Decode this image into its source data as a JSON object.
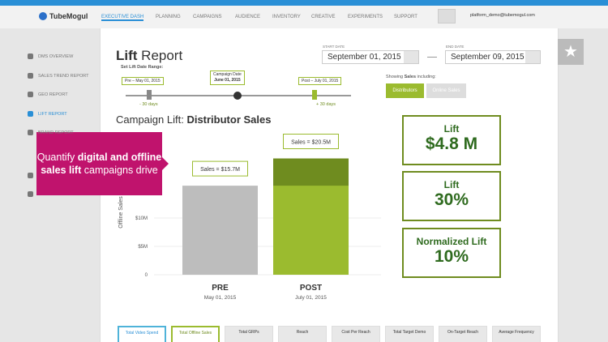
{
  "header": {
    "logo": "TubeMogul",
    "nav": [
      "EXECUTIVE DASH",
      "PLANNING",
      "CAMPAIGNS",
      "AUDIENCE",
      "INVENTORY",
      "CREATIVE",
      "EXPERIMENTS",
      "SUPPORT"
    ],
    "user": "platform_demo@tubemogul.com"
  },
  "sidebar": [
    "DMS OVERVIEW",
    "SALES TREND REPORT",
    "GEO REPORT",
    "LIFT REPORT",
    "BRAND REPORT"
  ],
  "report": {
    "title_bold": "Lift",
    "title_rest": " Report",
    "range_label": "Set Lift Date Range:",
    "slider": {
      "pre": "Pre – May 01, 2015",
      "campaign_label": "Campaign Date",
      "campaign_date": "June 01, 2015",
      "post": "Post – July 01, 2015",
      "minus": "- 30 days",
      "plus": "+ 30 days"
    },
    "start_label": "START DATE",
    "start": "September 01, 2015",
    "end_label": "END DATE",
    "end": "September 09, 2015",
    "showing_prefix": "Showing ",
    "showing_bold": "Sales",
    "showing_suffix": " including:",
    "buttons": [
      "Distributors",
      "Online Sales"
    ],
    "lift_prefix": "Campaign Lift: ",
    "lift_bold": "Distributor Sales"
  },
  "cards": [
    {
      "label": "Lift",
      "value": "$4.8 M"
    },
    {
      "label": "Lift",
      "value": "30%"
    },
    {
      "label": "Normalized Lift",
      "value": "10%"
    }
  ],
  "callout": [
    "Quantify ",
    "digital and offline",
    " sales lift",
    " campaigns drive"
  ],
  "totals": [
    "Total Video Spend",
    "Total Offline Sales",
    "Total GRPs",
    "Reach",
    "Cost Per Reach",
    "Total Target Demo",
    "On-Target Reach",
    "Average Frequency"
  ],
  "chart_data": {
    "type": "bar",
    "ylabel": "Offline Sales",
    "categories": [
      "PRE",
      "POST"
    ],
    "dates": [
      "May 01, 2015",
      "July 01, 2015"
    ],
    "values": [
      15.7,
      20.5
    ],
    "value_labels": [
      "Sales = $15.7M",
      "Sales = $20.5M"
    ],
    "colors": [
      "#bdbdbd",
      "#9bbb2f"
    ],
    "lift_color": "#6f8c1f",
    "ylim": [
      0,
      22
    ],
    "yticks": [
      0,
      {
        "value": 5,
        "label": "$5M"
      },
      {
        "value": 10,
        "label": "$10M"
      }
    ]
  }
}
